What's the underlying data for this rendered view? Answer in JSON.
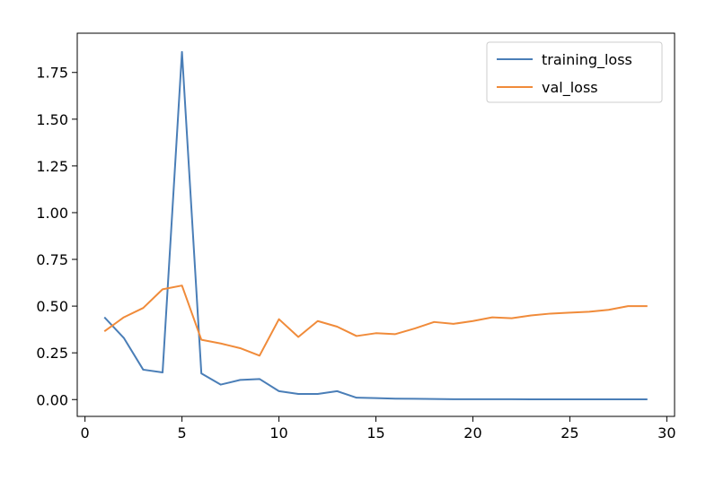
{
  "chart_data": {
    "type": "line",
    "title": "",
    "xlabel": "",
    "ylabel": "",
    "xlim": [
      -0.4,
      30.4
    ],
    "ylim": [
      -0.09,
      1.96
    ],
    "xticks": [
      0,
      5,
      10,
      15,
      20,
      25,
      30
    ],
    "xtick_labels": [
      "0",
      "5",
      "10",
      "15",
      "20",
      "25",
      "30"
    ],
    "yticks": [
      0.0,
      0.25,
      0.5,
      0.75,
      1.0,
      1.25,
      1.5,
      1.75
    ],
    "ytick_labels": [
      "0.00",
      "0.25",
      "0.50",
      "0.75",
      "1.00",
      "1.25",
      "1.50",
      "1.75"
    ],
    "grid": false,
    "legend_position": "top-right",
    "x": [
      1,
      2,
      3,
      4,
      5,
      6,
      7,
      8,
      9,
      10,
      11,
      12,
      13,
      14,
      15,
      16,
      17,
      18,
      19,
      20,
      21,
      22,
      23,
      24,
      25,
      26,
      27,
      28,
      29
    ],
    "series": [
      {
        "name": "training_loss",
        "color": "#4a7eb7",
        "values": [
          0.44,
          0.33,
          0.16,
          0.145,
          1.86,
          0.14,
          0.08,
          0.105,
          0.11,
          0.045,
          0.03,
          0.03,
          0.045,
          0.01,
          0.008,
          0.005,
          0.004,
          0.003,
          0.002,
          0.002,
          0.002,
          0.002,
          0.001,
          0.001,
          0.001,
          0.001,
          0.001,
          0.001,
          0.001
        ]
      },
      {
        "name": "val_loss",
        "color": "#f08b3a",
        "values": [
          0.365,
          0.44,
          0.49,
          0.59,
          0.61,
          0.32,
          0.3,
          0.275,
          0.235,
          0.43,
          0.335,
          0.42,
          0.39,
          0.34,
          0.355,
          0.35,
          0.38,
          0.415,
          0.405,
          0.42,
          0.44,
          0.435,
          0.45,
          0.46,
          0.465,
          0.47,
          0.48,
          0.5,
          0.5
        ]
      }
    ]
  }
}
